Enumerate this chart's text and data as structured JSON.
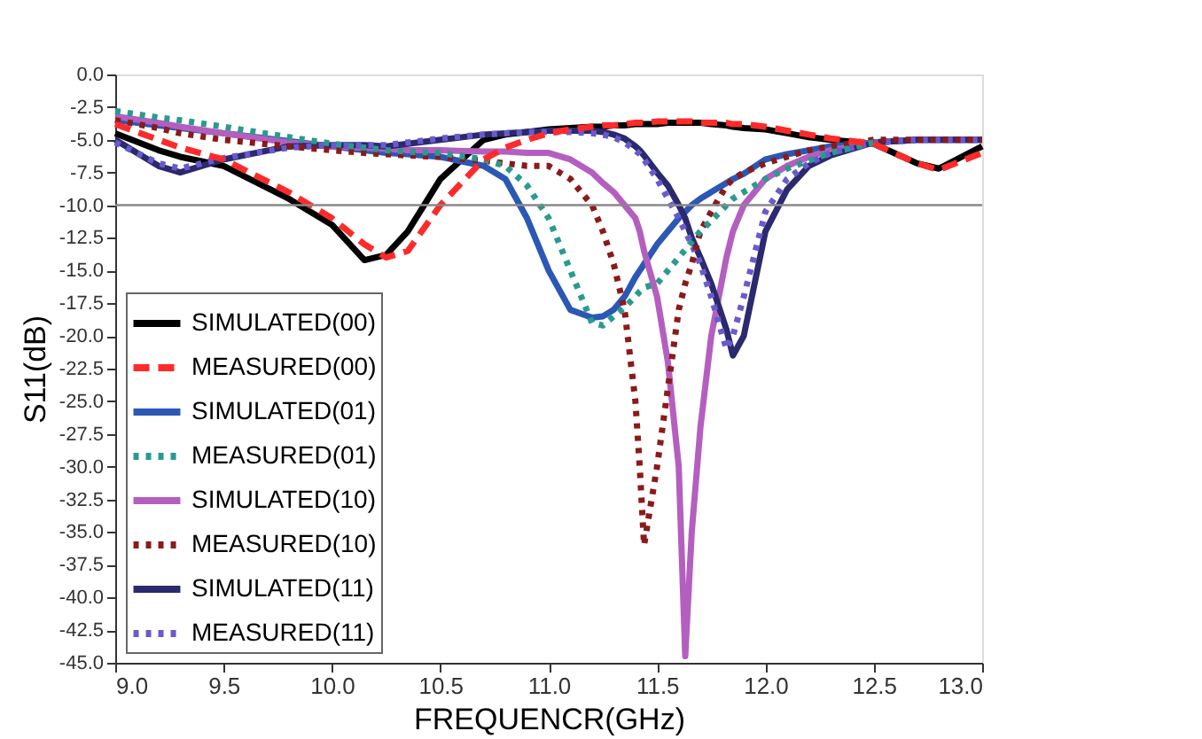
{
  "chart_data": {
    "type": "line",
    "xlabel": "FREQUENCR(GHz)",
    "ylabel": "S11(dB)",
    "x": [
      9.0,
      9.2,
      9.3,
      9.5,
      9.8,
      10.0,
      10.15,
      10.25,
      10.35,
      10.5,
      10.7,
      10.8,
      10.9,
      11.0,
      11.1,
      11.2,
      11.25,
      11.3,
      11.35,
      11.4,
      11.42,
      11.44,
      11.5,
      11.55,
      11.6,
      11.63,
      11.66,
      11.7,
      11.75,
      11.82,
      11.85,
      11.9,
      12.0,
      12.1,
      12.2,
      12.3,
      12.5,
      12.7,
      12.8,
      13.0
    ],
    "series": [
      {
        "name": "SIMULATED(00)",
        "color": "#000000",
        "line_style": "solid",
        "values": [
          -4.5,
          -5.8,
          -6.3,
          -7.0,
          -9.5,
          -11.5,
          -14.2,
          -13.8,
          -12.0,
          -8.0,
          -5.0,
          -4.6,
          -4.4,
          -4.2,
          -4.1,
          -4.0,
          -4.0,
          -3.9,
          -3.9,
          -3.8,
          -3.8,
          -3.8,
          -3.8,
          -3.7,
          -3.7,
          -3.7,
          -3.7,
          -3.7,
          -3.8,
          -3.9,
          -4.0,
          -4.1,
          -4.2,
          -4.5,
          -4.8,
          -5.0,
          -5.3,
          -6.8,
          -7.2,
          -5.5
        ]
      },
      {
        "name": "MEASURED(00)",
        "color": "#ff2a2a",
        "line_style": "dashed",
        "values": [
          -3.8,
          -5.0,
          -5.6,
          -6.5,
          -9.0,
          -11.0,
          -13.0,
          -14.0,
          -13.5,
          -10.0,
          -6.5,
          -5.6,
          -5.0,
          -4.5,
          -4.2,
          -4.0,
          -3.9,
          -3.9,
          -3.8,
          -3.7,
          -3.7,
          -3.7,
          -3.6,
          -3.6,
          -3.6,
          -3.6,
          -3.6,
          -3.7,
          -3.7,
          -3.7,
          -3.8,
          -3.8,
          -4.0,
          -4.3,
          -4.6,
          -4.9,
          -5.3,
          -6.8,
          -7.3,
          -6.0
        ]
      },
      {
        "name": "SIMULATED(01)",
        "color": "#2b58b5",
        "line_style": "solid",
        "values": [
          -3.5,
          -3.9,
          -4.1,
          -4.5,
          -5.1,
          -5.5,
          -5.8,
          -6.0,
          -6.1,
          -6.3,
          -7.0,
          -8.0,
          -11.0,
          -15.0,
          -18.0,
          -18.6,
          -18.5,
          -18.0,
          -17.0,
          -15.5,
          -15.0,
          -14.5,
          -13.0,
          -12.0,
          -11.0,
          -10.5,
          -10.0,
          -9.5,
          -9.0,
          -8.3,
          -8.0,
          -7.6,
          -6.5,
          -6.1,
          -5.8,
          -5.5,
          -5.2,
          -5.0,
          -5.0,
          -5.0
        ]
      },
      {
        "name": "MEASURED(01)",
        "color": "#2a9a90",
        "line_style": "dotted",
        "values": [
          -2.8,
          -3.3,
          -3.5,
          -4.0,
          -4.8,
          -5.3,
          -5.6,
          -5.8,
          -5.9,
          -6.0,
          -6.5,
          -7.0,
          -8.5,
          -11.0,
          -15.0,
          -19.0,
          -19.2,
          -18.5,
          -17.8,
          -17.0,
          -16.6,
          -16.3,
          -16.0,
          -15.0,
          -14.0,
          -13.4,
          -12.8,
          -12.0,
          -11.2,
          -10.0,
          -9.5,
          -9.0,
          -8.0,
          -7.2,
          -6.6,
          -6.0,
          -5.2,
          null,
          null,
          null
        ]
      },
      {
        "name": "SIMULATED(10)",
        "color": "#b45fbf",
        "line_style": "solid",
        "values": [
          -3.2,
          -3.7,
          -4.0,
          -4.5,
          -5.2,
          -5.5,
          -5.6,
          -5.7,
          -5.8,
          -5.8,
          -5.9,
          -5.9,
          -6.0,
          -6.0,
          -6.5,
          -7.5,
          -8.3,
          -9.0,
          -10.0,
          -11.0,
          -12.0,
          -13.5,
          -17.0,
          -22.0,
          -30.0,
          -44.5,
          -35.0,
          -27.0,
          -20.0,
          -14.0,
          -12.0,
          -10.0,
          -8.0,
          -7.0,
          -6.3,
          -5.8,
          -5.2,
          -5.0,
          -5.0,
          -5.0
        ]
      },
      {
        "name": "MEASURED(10)",
        "color": "#8b1a1a",
        "line_style": "dotted",
        "values": [
          -3.5,
          -4.1,
          -4.5,
          -5.0,
          -5.5,
          -5.8,
          -6.0,
          -6.1,
          -6.2,
          -6.3,
          -6.6,
          -6.8,
          -7.0,
          -7.0,
          -8.0,
          -10.0,
          -12.0,
          -14.5,
          -18.0,
          -25.0,
          -30.0,
          -36.0,
          -30.0,
          -24.0,
          -18.0,
          -16.0,
          -14.5,
          -12.0,
          -10.5,
          -8.5,
          -8.0,
          -7.5,
          -6.8,
          -6.3,
          -5.8,
          -5.5,
          -5.0,
          -5.0,
          -5.0,
          -5.0
        ]
      },
      {
        "name": "SIMULATED(11)",
        "color": "#2b2a6e",
        "line_style": "solid",
        "values": [
          -5.0,
          -7.0,
          -7.5,
          -6.5,
          -5.5,
          -5.4,
          -5.4,
          -5.5,
          -5.3,
          -5.0,
          -4.6,
          -4.5,
          -4.4,
          -4.3,
          -4.3,
          -4.3,
          -4.4,
          -4.6,
          -4.9,
          -5.5,
          -5.8,
          -6.2,
          -7.5,
          -8.5,
          -10.0,
          -11.0,
          -12.5,
          -14.0,
          -16.0,
          -19.5,
          -21.5,
          -20.0,
          -12.0,
          -8.8,
          -7.0,
          -6.2,
          -5.2,
          -5.0,
          -5.0,
          -5.0
        ]
      },
      {
        "name": "MEASURED(11)",
        "color": "#6a5acd",
        "line_style": "dotted",
        "values": [
          -5.2,
          -6.8,
          -7.2,
          -6.4,
          -5.6,
          -5.4,
          -5.4,
          -5.4,
          -5.2,
          -4.9,
          -4.6,
          -4.5,
          -4.4,
          -4.4,
          -4.4,
          -4.5,
          -4.6,
          -4.8,
          -5.2,
          -5.8,
          -6.1,
          -6.5,
          -8.0,
          -9.5,
          -11.0,
          -12.0,
          -13.0,
          -14.5,
          -17.0,
          -21.0,
          -20.0,
          -17.0,
          -10.5,
          -8.0,
          -6.8,
          -6.0,
          -5.2,
          -5.0,
          -5.0,
          -5.0
        ]
      }
    ],
    "xlim": [
      9.0,
      13.0
    ],
    "xticks": [
      {
        "value": 9,
        "label": "9.0"
      },
      9.5,
      {
        "value": 10,
        "label": "10.0"
      },
      10.5,
      {
        "value": 11,
        "label": "11.0"
      },
      11.5,
      {
        "value": 12,
        "label": "12.0"
      },
      12.5,
      {
        "value": 13,
        "label": "13.0"
      }
    ],
    "ylim": [
      -45.0,
      0.0
    ],
    "yticks": [
      {
        "value": 0,
        "label": "0.0"
      },
      -2.5,
      {
        "value": -5,
        "label": "-5.0"
      },
      -7.5,
      {
        "value": -10,
        "label": "-10.0"
      },
      -12.5,
      {
        "value": -15,
        "label": "-15.0"
      },
      -17.5,
      {
        "value": -20,
        "label": "-20.0"
      },
      -22.5,
      {
        "value": -25,
        "label": "-25.0"
      },
      -27.5,
      {
        "value": -30,
        "label": "-30.0"
      },
      -32.5,
      {
        "value": -35,
        "label": "-35.0"
      },
      -37.5,
      {
        "value": -40,
        "label": "-40.0"
      },
      -42.5,
      {
        "value": -45,
        "label": "-45.0"
      }
    ],
    "ref_lines": [
      {
        "axis": "y",
        "value": -10,
        "label": null,
        "color": "#888888"
      }
    ],
    "legend": "bottom left",
    "grid": false,
    "marker": "none"
  }
}
